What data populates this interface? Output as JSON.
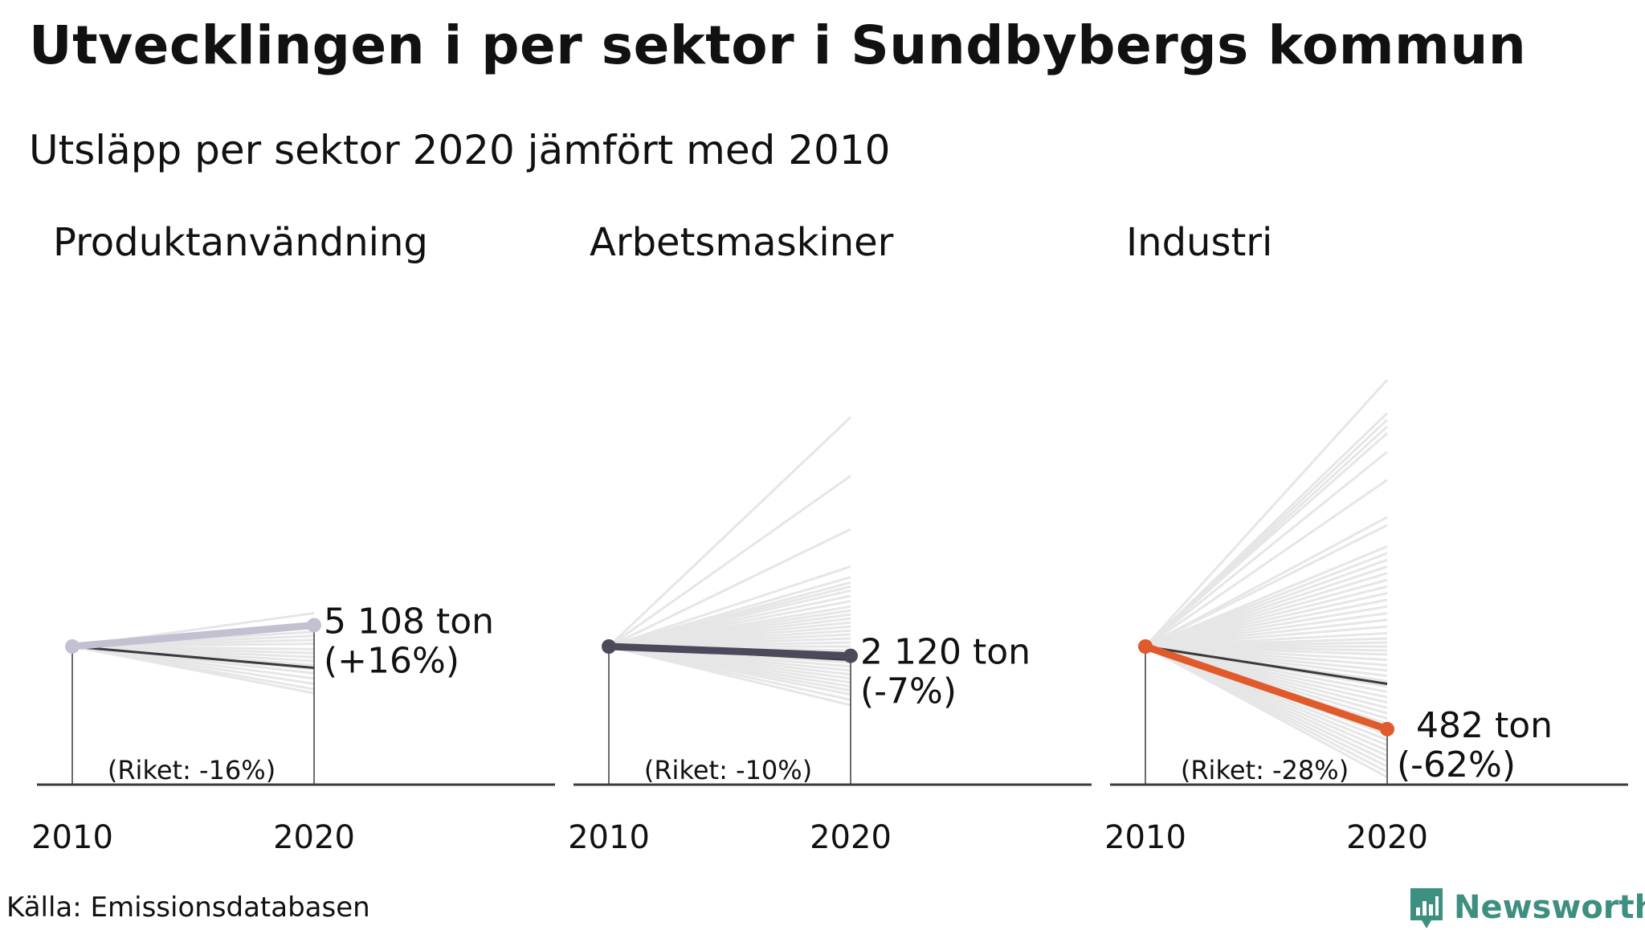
{
  "title": "Utvecklingen i per sektor i Sundbybergs kommun",
  "subtitle": "Utsläpp per sektor 2020 jämfört med 2010",
  "source": "Källa: Emissionsdatabasen",
  "brand": {
    "name": "Newsworthy",
    "icon": "newsworthy-bar-chart-icon",
    "color": "#3d8f80"
  },
  "colors": {
    "background_lines": "#e6e6e6",
    "national": "#3a3a3a",
    "axis": "#3a3a3a"
  },
  "chart_data": [
    {
      "type": "line",
      "title": "Produktanvändning",
      "x": [
        "2010",
        "2020"
      ],
      "value_label": "5 108 ton",
      "change_label": "(+16%)",
      "national_label": "(Riket: -16%)",
      "series": [
        {
          "role": "kommun",
          "color": "#c3c0d1",
          "change_pct": 16
        },
        {
          "role": "riket",
          "change_pct": -16
        }
      ],
      "other_municipalities_change_pct": [
        25,
        14,
        11,
        8,
        5,
        2,
        -2,
        -5,
        -8,
        -11,
        -14,
        -17,
        -20,
        -24,
        -28,
        -32,
        -35
      ]
    },
    {
      "type": "line",
      "title": "Arbetsmaskiner",
      "x": [
        "2010",
        "2020"
      ],
      "value_label": "2 120 ton",
      "change_label": "(-7%)",
      "national_label": "(Riket: -10%)",
      "series": [
        {
          "role": "kommun",
          "color": "#4a4a5a",
          "change_pct": -7
        },
        {
          "role": "riket",
          "change_pct": -10
        }
      ],
      "other_municipalities_change_pct": [
        172,
        128,
        88,
        60,
        52,
        48,
        45,
        42,
        38,
        34,
        30,
        27,
        24,
        21,
        18,
        15,
        12,
        9,
        6,
        3,
        0,
        -3,
        -6,
        -9,
        -12,
        -15,
        -18,
        -21,
        -24,
        -27,
        -30,
        -33,
        -36,
        -40,
        -44
      ]
    },
    {
      "type": "line",
      "title": "Industri",
      "x": [
        "2010",
        "2020"
      ],
      "value_label": "482 ton",
      "change_label": "(-62%)",
      "national_label": "(Riket: -28%)",
      "series": [
        {
          "role": "kommun",
          "color": "#e05a2b",
          "change_pct": -62
        },
        {
          "role": "riket",
          "change_pct": -28
        }
      ],
      "other_municipalities_change_pct": [
        200,
        175,
        170,
        165,
        160,
        146,
        125,
        97,
        91,
        75,
        70,
        65,
        60,
        55,
        50,
        45,
        40,
        35,
        30,
        25,
        20,
        15,
        10,
        6,
        3,
        0,
        -3,
        -6,
        -10,
        -14,
        -18,
        -22,
        -26,
        -30,
        -34,
        -38,
        -42,
        -46,
        -50,
        -54,
        -58,
        -62,
        -66,
        -70,
        -74,
        -78,
        -82,
        -86,
        -90,
        -94,
        -98
      ]
    }
  ]
}
